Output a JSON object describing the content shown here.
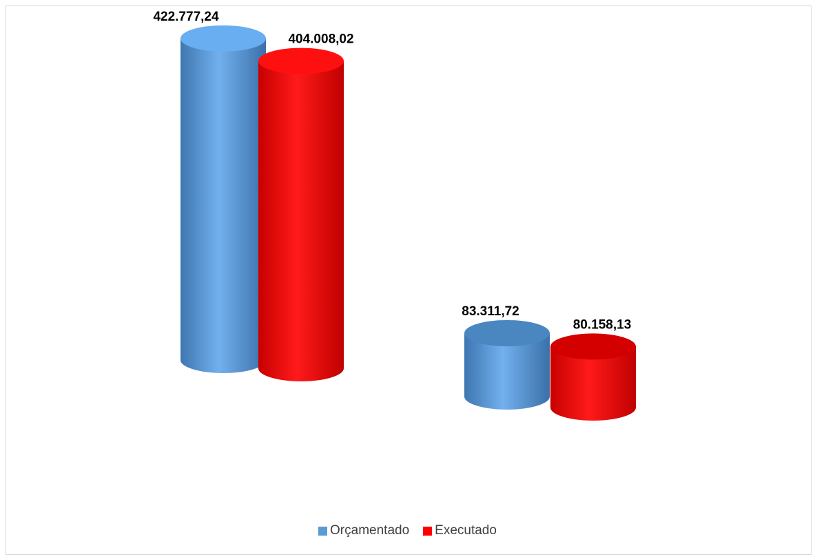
{
  "chart_data": {
    "type": "bar",
    "style": "3d-cylinder",
    "categories": [
      "",
      ""
    ],
    "series": [
      {
        "name": "Orçamentado",
        "color": "#5b9bd5",
        "values": [
          422777.24,
          83311.72
        ],
        "labels": [
          "422.777,24",
          "83.311,72"
        ]
      },
      {
        "name": "Executado",
        "color": "#ff0000",
        "values": [
          404008.02,
          80158.13
        ],
        "labels": [
          "404.008,02",
          "80.158,13"
        ]
      }
    ],
    "title": "",
    "xlabel": "",
    "ylabel": "",
    "grid": false,
    "legend_position": "bottom"
  }
}
